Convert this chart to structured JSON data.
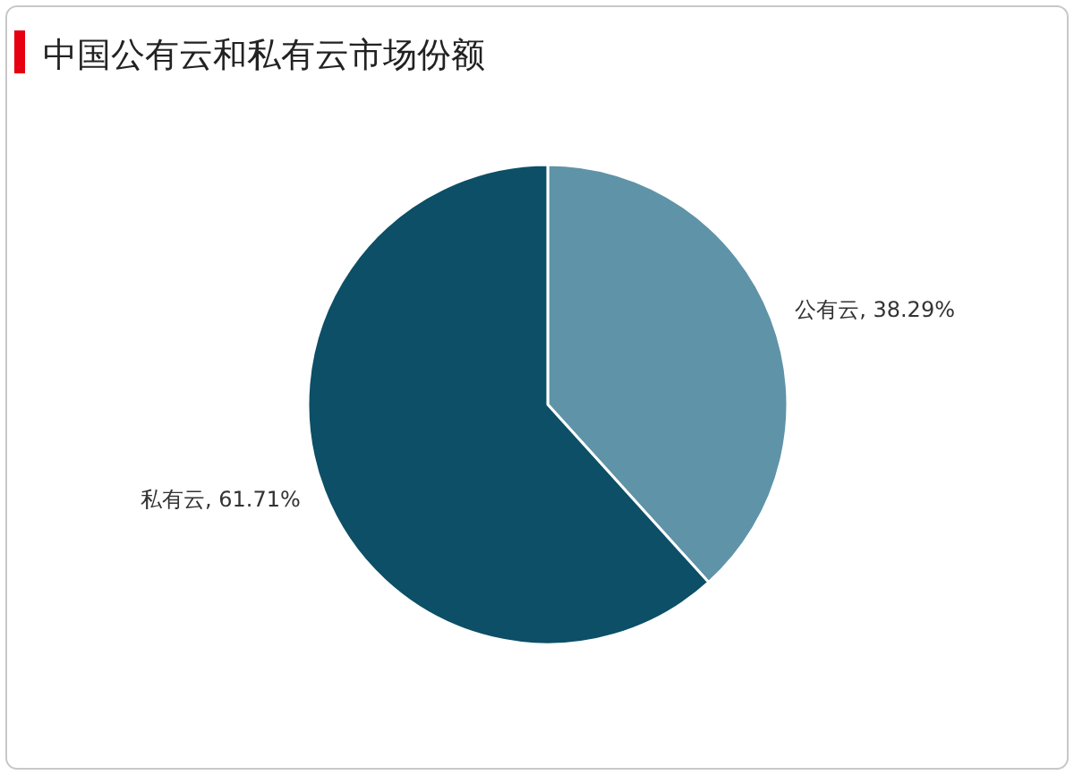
{
  "chart_data": {
    "type": "pie",
    "title": "中国公有云和私有云市场份额",
    "categories": [
      "公有云",
      "私有云"
    ],
    "values": [
      38.29,
      61.71
    ],
    "colors": [
      "#5f93a8",
      "#0c4f66"
    ],
    "value_labels": [
      ", 38.29%",
      ", 61.71%"
    ]
  }
}
